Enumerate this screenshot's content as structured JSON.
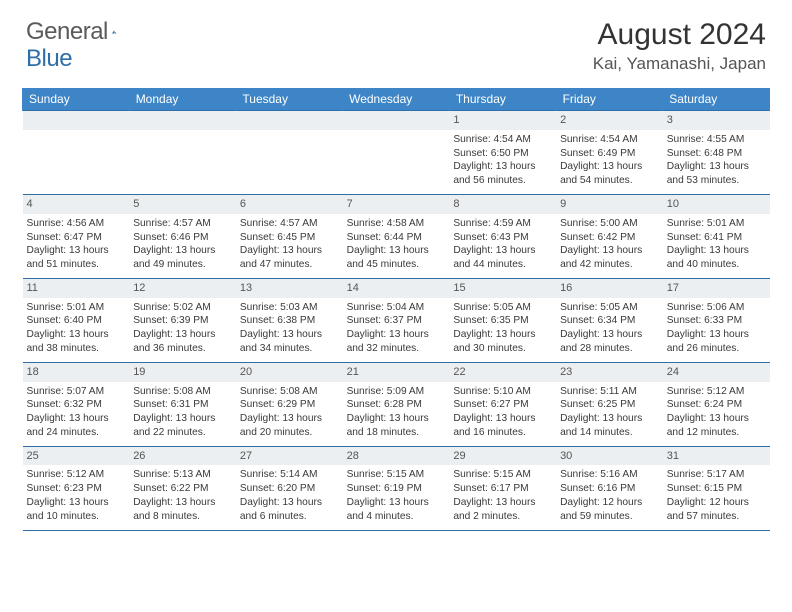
{
  "brand": {
    "word1": "General",
    "word2": "Blue"
  },
  "title": "August 2024",
  "location": "Kai, Yamanashi, Japan",
  "colors": {
    "header_bg": "#3d85c6",
    "border": "#2f6fa8",
    "daynum_bg": "#eceff1",
    "text": "#3a3a3a"
  },
  "weekdays": [
    "Sunday",
    "Monday",
    "Tuesday",
    "Wednesday",
    "Thursday",
    "Friday",
    "Saturday"
  ],
  "weeks": [
    [
      null,
      null,
      null,
      null,
      {
        "n": "1",
        "sunrise": "4:54 AM",
        "sunset": "6:50 PM",
        "daylight": "13 hours and 56 minutes."
      },
      {
        "n": "2",
        "sunrise": "4:54 AM",
        "sunset": "6:49 PM",
        "daylight": "13 hours and 54 minutes."
      },
      {
        "n": "3",
        "sunrise": "4:55 AM",
        "sunset": "6:48 PM",
        "daylight": "13 hours and 53 minutes."
      }
    ],
    [
      {
        "n": "4",
        "sunrise": "4:56 AM",
        "sunset": "6:47 PM",
        "daylight": "13 hours and 51 minutes."
      },
      {
        "n": "5",
        "sunrise": "4:57 AM",
        "sunset": "6:46 PM",
        "daylight": "13 hours and 49 minutes."
      },
      {
        "n": "6",
        "sunrise": "4:57 AM",
        "sunset": "6:45 PM",
        "daylight": "13 hours and 47 minutes."
      },
      {
        "n": "7",
        "sunrise": "4:58 AM",
        "sunset": "6:44 PM",
        "daylight": "13 hours and 45 minutes."
      },
      {
        "n": "8",
        "sunrise": "4:59 AM",
        "sunset": "6:43 PM",
        "daylight": "13 hours and 44 minutes."
      },
      {
        "n": "9",
        "sunrise": "5:00 AM",
        "sunset": "6:42 PM",
        "daylight": "13 hours and 42 minutes."
      },
      {
        "n": "10",
        "sunrise": "5:01 AM",
        "sunset": "6:41 PM",
        "daylight": "13 hours and 40 minutes."
      }
    ],
    [
      {
        "n": "11",
        "sunrise": "5:01 AM",
        "sunset": "6:40 PM",
        "daylight": "13 hours and 38 minutes."
      },
      {
        "n": "12",
        "sunrise": "5:02 AM",
        "sunset": "6:39 PM",
        "daylight": "13 hours and 36 minutes."
      },
      {
        "n": "13",
        "sunrise": "5:03 AM",
        "sunset": "6:38 PM",
        "daylight": "13 hours and 34 minutes."
      },
      {
        "n": "14",
        "sunrise": "5:04 AM",
        "sunset": "6:37 PM",
        "daylight": "13 hours and 32 minutes."
      },
      {
        "n": "15",
        "sunrise": "5:05 AM",
        "sunset": "6:35 PM",
        "daylight": "13 hours and 30 minutes."
      },
      {
        "n": "16",
        "sunrise": "5:05 AM",
        "sunset": "6:34 PM",
        "daylight": "13 hours and 28 minutes."
      },
      {
        "n": "17",
        "sunrise": "5:06 AM",
        "sunset": "6:33 PM",
        "daylight": "13 hours and 26 minutes."
      }
    ],
    [
      {
        "n": "18",
        "sunrise": "5:07 AM",
        "sunset": "6:32 PM",
        "daylight": "13 hours and 24 minutes."
      },
      {
        "n": "19",
        "sunrise": "5:08 AM",
        "sunset": "6:31 PM",
        "daylight": "13 hours and 22 minutes."
      },
      {
        "n": "20",
        "sunrise": "5:08 AM",
        "sunset": "6:29 PM",
        "daylight": "13 hours and 20 minutes."
      },
      {
        "n": "21",
        "sunrise": "5:09 AM",
        "sunset": "6:28 PM",
        "daylight": "13 hours and 18 minutes."
      },
      {
        "n": "22",
        "sunrise": "5:10 AM",
        "sunset": "6:27 PM",
        "daylight": "13 hours and 16 minutes."
      },
      {
        "n": "23",
        "sunrise": "5:11 AM",
        "sunset": "6:25 PM",
        "daylight": "13 hours and 14 minutes."
      },
      {
        "n": "24",
        "sunrise": "5:12 AM",
        "sunset": "6:24 PM",
        "daylight": "13 hours and 12 minutes."
      }
    ],
    [
      {
        "n": "25",
        "sunrise": "5:12 AM",
        "sunset": "6:23 PM",
        "daylight": "13 hours and 10 minutes."
      },
      {
        "n": "26",
        "sunrise": "5:13 AM",
        "sunset": "6:22 PM",
        "daylight": "13 hours and 8 minutes."
      },
      {
        "n": "27",
        "sunrise": "5:14 AM",
        "sunset": "6:20 PM",
        "daylight": "13 hours and 6 minutes."
      },
      {
        "n": "28",
        "sunrise": "5:15 AM",
        "sunset": "6:19 PM",
        "daylight": "13 hours and 4 minutes."
      },
      {
        "n": "29",
        "sunrise": "5:15 AM",
        "sunset": "6:17 PM",
        "daylight": "13 hours and 2 minutes."
      },
      {
        "n": "30",
        "sunrise": "5:16 AM",
        "sunset": "6:16 PM",
        "daylight": "12 hours and 59 minutes."
      },
      {
        "n": "31",
        "sunrise": "5:17 AM",
        "sunset": "6:15 PM",
        "daylight": "12 hours and 57 minutes."
      }
    ]
  ],
  "labels": {
    "sunrise": "Sunrise: ",
    "sunset": "Sunset: ",
    "daylight": "Daylight: "
  }
}
